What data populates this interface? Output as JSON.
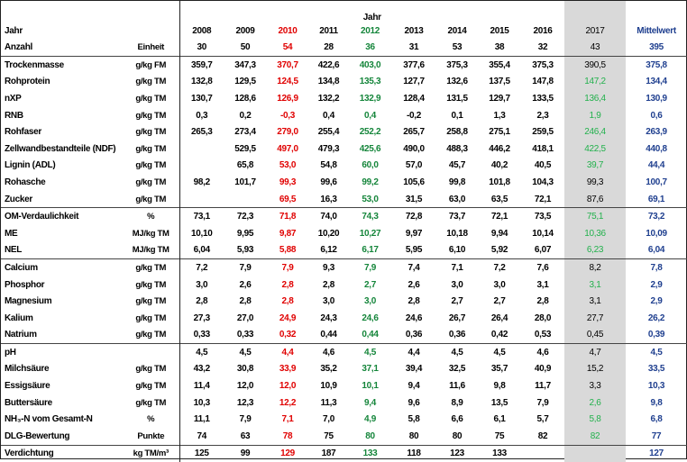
{
  "colors": {
    "year_2010": "#e00000",
    "year_2012": "#14853a",
    "year_2017_highlight": "#22b14c",
    "mittelwert": "#1f3f8f",
    "gray_column": "#d9d9d9"
  },
  "header": {
    "title": "Jahr",
    "row_year_label": "Jahr",
    "row_count_label": "Anzahl",
    "unit_label": "Einheit",
    "columns": [
      {
        "year": "2008",
        "count": "30"
      },
      {
        "year": "2009",
        "count": "50"
      },
      {
        "year": "2010",
        "count": "54"
      },
      {
        "year": "2011",
        "count": "28"
      },
      {
        "year": "2012",
        "count": "36"
      },
      {
        "year": "2013",
        "count": "31"
      },
      {
        "year": "2014",
        "count": "53"
      },
      {
        "year": "2015",
        "count": "38"
      },
      {
        "year": "2016",
        "count": "32"
      },
      {
        "year": "2017",
        "count": "43"
      },
      {
        "year": "Mittelwert",
        "count": "395"
      }
    ]
  },
  "sections": [
    {
      "rows": [
        {
          "label": "Trockenmasse",
          "unit": "g/kg FM",
          "values": [
            "359,7",
            "347,3",
            "370,7",
            "422,6",
            "403,0",
            "377,6",
            "375,3",
            "355,4",
            "375,3",
            "390,5",
            "375,8"
          ],
          "hl2017": false
        },
        {
          "label": "Rohprotein",
          "unit": "g/kg TM",
          "values": [
            "132,8",
            "129,5",
            "124,5",
            "134,8",
            "135,3",
            "127,7",
            "132,6",
            "137,5",
            "147,8",
            "147,2",
            "134,4"
          ],
          "hl2017": true
        },
        {
          "label": "nXP",
          "unit": "g/kg TM",
          "values": [
            "130,7",
            "128,6",
            "126,9",
            "132,2",
            "132,9",
            "128,4",
            "131,5",
            "129,7",
            "133,5",
            "136,4",
            "130,9"
          ],
          "hl2017": true
        },
        {
          "label": "RNB",
          "unit": "g/kg TM",
          "values": [
            "0,3",
            "0,2",
            "-0,3",
            "0,4",
            "0,4",
            "-0,2",
            "0,1",
            "1,3",
            "2,3",
            "1,9",
            "0,6"
          ],
          "hl2017": true
        },
        {
          "label": "Rohfaser",
          "unit": "g/kg TM",
          "values": [
            "265,3",
            "273,4",
            "279,0",
            "255,4",
            "252,2",
            "265,7",
            "258,8",
            "275,1",
            "259,5",
            "246,4",
            "263,9"
          ],
          "hl2017": true
        },
        {
          "label": "Zellwandbestandteile (NDF)",
          "unit": "g/kg TM",
          "values": [
            "",
            "529,5",
            "497,0",
            "479,3",
            "425,6",
            "490,0",
            "488,3",
            "446,2",
            "418,1",
            "422,5",
            "440,8"
          ],
          "hl2017": true
        },
        {
          "label": "Lignin (ADL)",
          "unit": "g/kg TM",
          "values": [
            "",
            "65,8",
            "53,0",
            "54,8",
            "60,0",
            "57,0",
            "45,7",
            "40,2",
            "40,5",
            "39,7",
            "44,4"
          ],
          "hl2017": true
        },
        {
          "label": "Rohasche",
          "unit": "g/kg TM",
          "values": [
            "98,2",
            "101,7",
            "99,3",
            "99,6",
            "99,2",
            "105,6",
            "99,8",
            "101,8",
            "104,3",
            "99,3",
            "100,7"
          ],
          "hl2017": false
        },
        {
          "label": "Zucker",
          "unit": "g/kg TM",
          "values": [
            "",
            "",
            "69,5",
            "16,3",
            "53,0",
            "31,5",
            "63,0",
            "63,5",
            "72,1",
            "87,6",
            "69,1"
          ],
          "hl2017": false
        }
      ]
    },
    {
      "rows": [
        {
          "label": "OM-Verdaulichkeit",
          "unit": "%",
          "values": [
            "73,1",
            "72,3",
            "71,8",
            "74,0",
            "74,3",
            "72,8",
            "73,7",
            "72,1",
            "73,5",
            "75,1",
            "73,2"
          ],
          "hl2017": true
        },
        {
          "label": "ME",
          "unit": "MJ/kg TM",
          "values": [
            "10,10",
            "9,95",
            "9,87",
            "10,20",
            "10,27",
            "9,97",
            "10,18",
            "9,94",
            "10,14",
            "10,36",
            "10,09"
          ],
          "hl2017": true
        },
        {
          "label": "NEL",
          "unit": "MJ/kg TM",
          "values": [
            "6,04",
            "5,93",
            "5,88",
            "6,12",
            "6,17",
            "5,95",
            "6,10",
            "5,92",
            "6,07",
            "6,23",
            "6,04"
          ],
          "hl2017": true
        }
      ]
    },
    {
      "rows": [
        {
          "label": "Calcium",
          "unit": "g/kg TM",
          "values": [
            "7,2",
            "7,9",
            "7,9",
            "9,3",
            "7,9",
            "7,4",
            "7,1",
            "7,2",
            "7,6",
            "8,2",
            "7,8"
          ],
          "hl2017": false
        },
        {
          "label": "Phosphor",
          "unit": "g/kg TM",
          "values": [
            "3,0",
            "2,6",
            "2,8",
            "2,8",
            "2,7",
            "2,6",
            "3,0",
            "3,0",
            "3,1",
            "3,1",
            "2,9"
          ],
          "hl2017": true
        },
        {
          "label": "Magnesium",
          "unit": "g/kg TM",
          "values": [
            "2,8",
            "2,8",
            "2,8",
            "3,0",
            "3,0",
            "2,8",
            "2,7",
            "2,7",
            "2,8",
            "3,1",
            "2,9"
          ],
          "hl2017": false
        },
        {
          "label": "Kalium",
          "unit": "g/kg TM",
          "values": [
            "27,3",
            "27,0",
            "24,9",
            "24,3",
            "24,6",
            "24,6",
            "26,7",
            "26,4",
            "28,0",
            "27,7",
            "26,2"
          ],
          "hl2017": false
        },
        {
          "label": "Natrium",
          "unit": "g/kg TM",
          "values": [
            "0,33",
            "0,33",
            "0,32",
            "0,44",
            "0,44",
            "0,36",
            "0,36",
            "0,42",
            "0,53",
            "0,45",
            "0,39"
          ],
          "hl2017": false
        }
      ]
    },
    {
      "rows": [
        {
          "label": "pH",
          "unit": "",
          "values": [
            "4,5",
            "4,5",
            "4,4",
            "4,6",
            "4,5",
            "4,4",
            "4,5",
            "4,5",
            "4,6",
            "4,7",
            "4,5"
          ],
          "hl2017": false
        },
        {
          "label": "Milchsäure",
          "unit": "g/kg TM",
          "values": [
            "43,2",
            "30,8",
            "33,9",
            "35,2",
            "37,1",
            "39,4",
            "32,5",
            "35,7",
            "40,9",
            "15,2",
            "33,5"
          ],
          "hl2017": false
        },
        {
          "label": "Essigsäure",
          "unit": "g/kg TM",
          "values": [
            "11,4",
            "12,0",
            "12,0",
            "10,9",
            "10,1",
            "9,4",
            "11,6",
            "9,8",
            "11,7",
            "3,3",
            "10,3"
          ],
          "hl2017": false
        },
        {
          "label": "Buttersäure",
          "unit": "g/kg TM",
          "values": [
            "10,3",
            "12,3",
            "12,2",
            "11,3",
            "9,4",
            "9,6",
            "8,9",
            "13,5",
            "7,9",
            "2,6",
            "9,8"
          ],
          "hl2017": true
        },
        {
          "label": "NH₃-N vom Gesamt-N",
          "unit": "%",
          "values": [
            "11,1",
            "7,9",
            "7,1",
            "7,0",
            "4,9",
            "5,8",
            "6,6",
            "6,1",
            "5,7",
            "5,8",
            "6,8"
          ],
          "hl2017": true
        },
        {
          "label": "DLG-Bewertung",
          "unit": "Punkte",
          "values": [
            "74",
            "63",
            "78",
            "75",
            "80",
            "80",
            "80",
            "75",
            "82",
            "82",
            "77"
          ],
          "hl2017": true
        }
      ]
    },
    {
      "rows": [
        {
          "label": "Verdichtung",
          "unit": "kg TM/m³",
          "values": [
            "125",
            "99",
            "129",
            "187",
            "133",
            "118",
            "123",
            "133",
            "",
            "",
            "127"
          ],
          "hl2017": false
        }
      ]
    }
  ]
}
